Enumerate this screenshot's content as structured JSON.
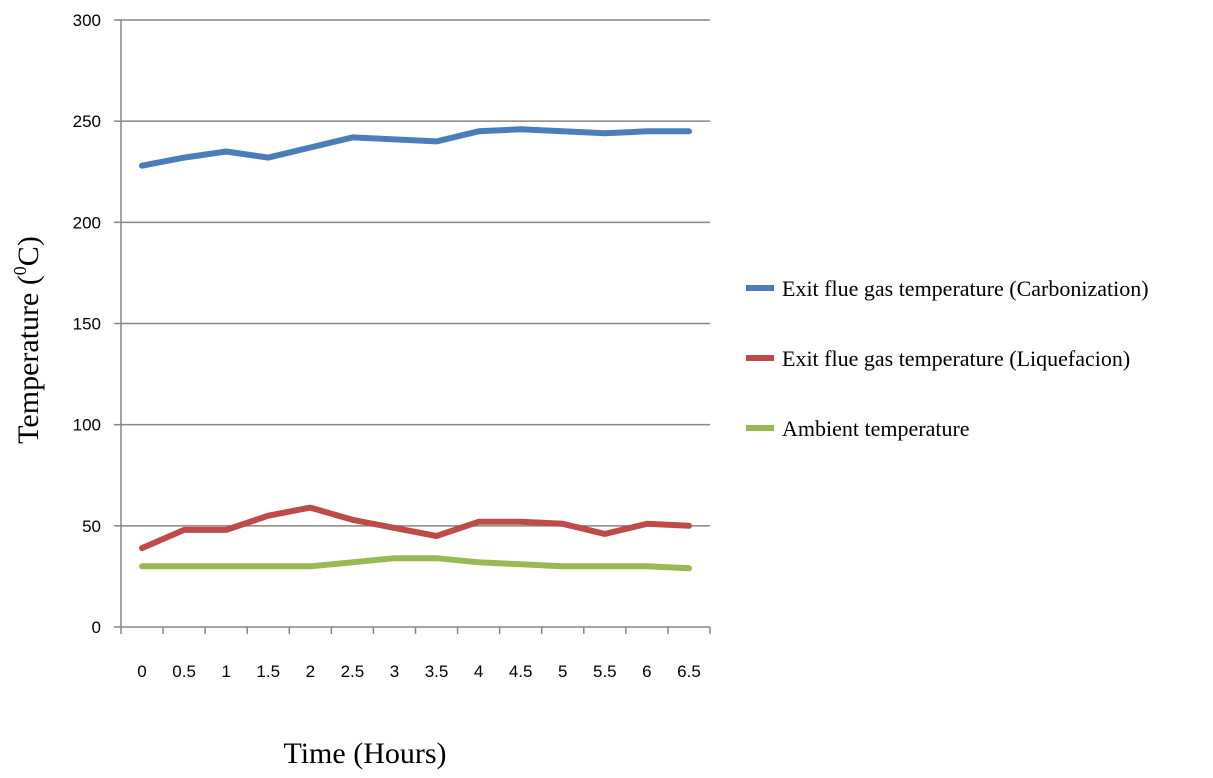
{
  "chart_data": {
    "type": "line",
    "title": "",
    "xlabel": "Time (Hours)",
    "ylabel_text": "Temperature (",
    "ylabel_superscript": "0",
    "ylabel_unit": "C)",
    "x": [
      "0",
      "0.5",
      "1",
      "1.5",
      "2",
      "2.5",
      "3",
      "3.5",
      "4",
      "4.5",
      "5",
      "5.5",
      "6",
      "6.5"
    ],
    "ylim": [
      0,
      300
    ],
    "yticks": [
      "0",
      "50",
      "100",
      "150",
      "200",
      "250",
      "300"
    ],
    "grid": "horizontal",
    "legend_position": "right",
    "series": [
      {
        "name": "Exit flue gas temperature (Carbonization)",
        "color": "#4a7ebb",
        "values": [
          228,
          232,
          235,
          232,
          237,
          242,
          241,
          240,
          245,
          246,
          245,
          244,
          245,
          245
        ]
      },
      {
        "name": "Exit flue gas temperature (Liquefacion)",
        "color": "#be4b48",
        "values": [
          39,
          48,
          48,
          55,
          59,
          53,
          49,
          45,
          52,
          52,
          51,
          46,
          51,
          50
        ]
      },
      {
        "name": "Ambient temperature",
        "color": "#98b954",
        "values": [
          30,
          30,
          30,
          30,
          30,
          32,
          34,
          34,
          32,
          31,
          30,
          30,
          30,
          29
        ]
      }
    ]
  }
}
